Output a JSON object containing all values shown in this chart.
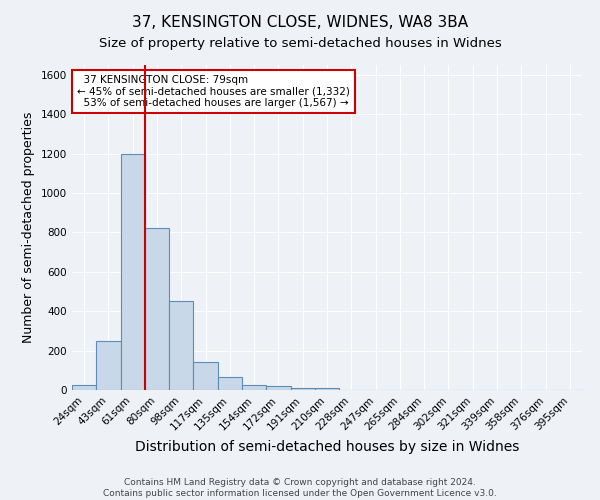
{
  "title": "37, KENSINGTON CLOSE, WIDNES, WA8 3BA",
  "subtitle": "Size of property relative to semi-detached houses in Widnes",
  "xlabel": "Distribution of semi-detached houses by size in Widnes",
  "ylabel": "Number of semi-detached properties",
  "footer_line1": "Contains HM Land Registry data © Crown copyright and database right 2024.",
  "footer_line2": "Contains public sector information licensed under the Open Government Licence v3.0.",
  "bin_labels": [
    "24sqm",
    "43sqm",
    "61sqm",
    "80sqm",
    "98sqm",
    "117sqm",
    "135sqm",
    "154sqm",
    "172sqm",
    "191sqm",
    "210sqm",
    "228sqm",
    "247sqm",
    "265sqm",
    "284sqm",
    "302sqm",
    "321sqm",
    "339sqm",
    "358sqm",
    "376sqm",
    "395sqm"
  ],
  "bin_values": [
    27,
    250,
    1200,
    825,
    450,
    140,
    65,
    27,
    20,
    12,
    12,
    0,
    0,
    0,
    0,
    0,
    0,
    0,
    0,
    0,
    0
  ],
  "bar_color": "#c8d8e8",
  "bar_edge_color": "#5b8db8",
  "vline_x": 2.5,
  "vline_color": "#cc0000",
  "annotation_text": "  37 KENSINGTON CLOSE: 79sqm\n← 45% of semi-detached houses are smaller (1,332)\n  53% of semi-detached houses are larger (1,567) →",
  "annotation_box_color": "#ffffff",
  "annotation_box_edge": "#cc0000",
  "ylim": [
    0,
    1650
  ],
  "yticks": [
    0,
    200,
    400,
    600,
    800,
    1000,
    1200,
    1400,
    1600
  ],
  "bg_color": "#eef2f7",
  "grid_color": "#ffffff",
  "title_fontsize": 11,
  "subtitle_fontsize": 9.5,
  "axis_label_fontsize": 9,
  "tick_fontsize": 7.5,
  "annotation_fontsize": 7.5,
  "footer_fontsize": 6.5
}
